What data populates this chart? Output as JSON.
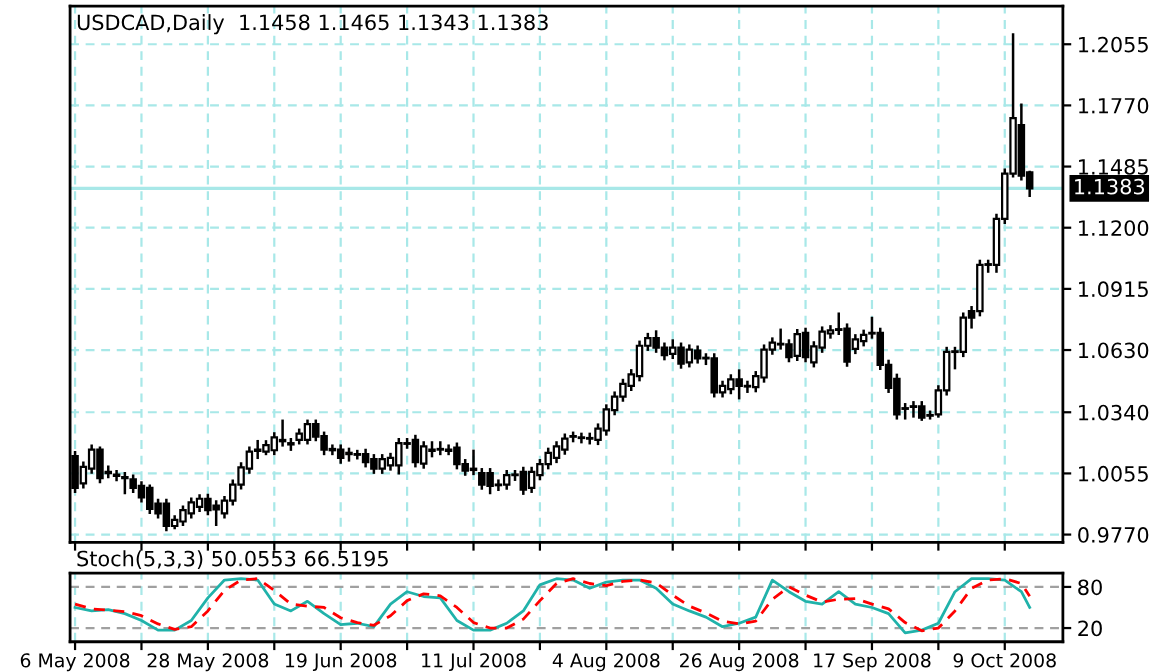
{
  "chart_data": [
    {
      "type": "candlestick",
      "title": "USDCAD,Daily  1.1458 1.1465 1.1343 1.1383",
      "ohlc": [
        [
          1.0136,
          1.016,
          0.9964,
          0.9988
        ],
        [
          1.0009,
          1.011,
          0.9985,
          1.0086
        ],
        [
          1.0077,
          1.019,
          1.0053,
          1.0166
        ],
        [
          1.0166,
          1.0181,
          1.0009,
          1.0033
        ],
        [
          1.0062,
          1.0092,
          1.0033,
          1.0056
        ],
        [
          1.005,
          1.0071,
          1.0018,
          1.0044
        ],
        [
          1.0038,
          1.0062,
          0.9958,
          1.0033
        ],
        [
          1.0027,
          1.005,
          0.9964,
          0.9988
        ],
        [
          0.9997,
          1.0018,
          0.992,
          0.9943
        ],
        [
          0.9988,
          1.0003,
          0.9866,
          0.989
        ],
        [
          0.9914,
          0.9937,
          0.9845,
          0.9869
        ],
        [
          0.9914,
          0.9937,
          0.9786,
          0.981
        ],
        [
          0.981,
          0.986,
          0.9795,
          0.9839
        ],
        [
          0.9831,
          0.9905,
          0.981,
          0.9884
        ],
        [
          0.9869,
          0.9943,
          0.9845,
          0.992
        ],
        [
          0.9899,
          0.9958,
          0.9875,
          0.9937
        ],
        [
          0.9937,
          0.996,
          0.986,
          0.9884
        ],
        [
          0.9905,
          0.993,
          0.981,
          0.9887
        ],
        [
          0.9869,
          0.995,
          0.9845,
          0.9928
        ],
        [
          0.9928,
          1.0027,
          0.9905,
          1.0003
        ],
        [
          1.0003,
          1.0107,
          0.998,
          1.0083
        ],
        [
          1.0077,
          1.0181,
          1.0053,
          1.0157
        ],
        [
          1.016,
          1.0211,
          1.0122,
          1.0166
        ],
        [
          1.0157,
          1.021,
          1.014,
          1.0187
        ],
        [
          1.0163,
          1.0247,
          1.014,
          1.0223
        ],
        [
          1.0211,
          1.0306,
          1.018,
          1.0205
        ],
        [
          1.019,
          1.022,
          1.016,
          1.0196
        ],
        [
          1.0211,
          1.0264,
          1.019,
          1.024
        ],
        [
          1.0211,
          1.0306,
          1.019,
          1.0285
        ],
        [
          1.0285,
          1.0306,
          1.0205,
          1.0226
        ],
        [
          1.0229,
          1.025,
          1.014,
          1.0166
        ],
        [
          1.0169,
          1.019,
          1.014,
          1.0163
        ],
        [
          1.0166,
          1.019,
          1.01,
          1.0127
        ],
        [
          1.0151,
          1.0175,
          1.011,
          1.0145
        ],
        [
          1.0145,
          1.0165,
          1.012,
          1.0142
        ],
        [
          1.0145,
          1.017,
          1.0083,
          1.0107
        ],
        [
          1.0122,
          1.0145,
          1.0053,
          1.0077
        ],
        [
          1.0077,
          1.0145,
          1.0053,
          1.0122
        ],
        [
          1.0092,
          1.0151,
          1.0068,
          1.0127
        ],
        [
          1.0092,
          1.022,
          1.005,
          1.0196
        ],
        [
          1.0196,
          1.022,
          1.017,
          1.0193
        ],
        [
          1.0211,
          1.0235,
          1.0083,
          1.0107
        ],
        [
          1.0101,
          1.0205,
          1.0077,
          1.0181
        ],
        [
          1.0166,
          1.0205,
          1.013,
          1.016
        ],
        [
          1.0166,
          1.0205,
          1.014,
          1.0169
        ],
        [
          1.0166,
          1.019,
          1.014,
          1.016
        ],
        [
          1.0175,
          1.0199,
          1.0074,
          1.0098
        ],
        [
          1.0098,
          1.0122,
          1.0044,
          1.0068
        ],
        [
          1.0077,
          1.0166,
          1.0047,
          1.0071
        ],
        [
          1.0056,
          1.008,
          0.9979,
          1.0003
        ],
        [
          1.0056,
          1.008,
          0.9958,
          0.9997
        ],
        [
          1.0003,
          1.0027,
          0.9973,
          1.0
        ],
        [
          1.0003,
          1.0071,
          0.9979,
          1.0047
        ],
        [
          1.0047,
          1.0071,
          1.002,
          1.005
        ],
        [
          1.0062,
          1.0086,
          0.9955,
          0.9979
        ],
        [
          0.9988,
          1.0086,
          0.9964,
          1.0062
        ],
        [
          1.0047,
          1.0122,
          1.0023,
          1.0098
        ],
        [
          1.0098,
          1.0175,
          1.0074,
          1.0151
        ],
        [
          1.0127,
          1.0205,
          1.0103,
          1.0181
        ],
        [
          1.0166,
          1.0241,
          1.0142,
          1.0217
        ],
        [
          1.0226,
          1.025,
          1.02,
          1.0229
        ],
        [
          1.022,
          1.0245,
          1.0195,
          1.0223
        ],
        [
          1.0217,
          1.0245,
          1.019,
          1.022
        ],
        [
          1.0211,
          1.0288,
          1.0187,
          1.0264
        ],
        [
          1.0255,
          1.0377,
          1.0231,
          1.0353
        ],
        [
          1.035,
          1.0437,
          1.0326,
          1.0413
        ],
        [
          1.0413,
          1.0496,
          1.0389,
          1.0472
        ],
        [
          1.0463,
          1.0541,
          1.0439,
          1.0517
        ],
        [
          1.0508,
          1.0674,
          1.0484,
          1.065
        ],
        [
          1.065,
          1.071,
          1.0626,
          1.0686
        ],
        [
          1.0686,
          1.0722,
          1.0617,
          1.0641
        ],
        [
          1.0641,
          1.0665,
          1.0582,
          1.0606
        ],
        [
          1.0612,
          1.068,
          1.0588,
          1.0641
        ],
        [
          1.0641,
          1.0665,
          1.0543,
          1.0567
        ],
        [
          1.0573,
          1.0656,
          1.0549,
          1.0632
        ],
        [
          1.0627,
          1.0651,
          1.0567,
          1.0591
        ],
        [
          1.0594,
          1.0615,
          1.056,
          1.0591
        ],
        [
          1.0591,
          1.0615,
          1.0409,
          1.0433
        ],
        [
          1.0433,
          1.0487,
          1.0409,
          1.0463
        ],
        [
          1.0448,
          1.0517,
          1.0424,
          1.0493
        ],
        [
          1.0493,
          1.054,
          1.04,
          1.0463
        ],
        [
          1.0463,
          1.0487,
          1.043,
          1.046
        ],
        [
          1.0457,
          1.0532,
          1.0433,
          1.0508
        ],
        [
          1.0502,
          1.0656,
          1.0478,
          1.0632
        ],
        [
          1.0632,
          1.0689,
          1.0608,
          1.0665
        ],
        [
          1.0656,
          1.073,
          1.0632,
          1.0659
        ],
        [
          1.0656,
          1.068,
          1.0573,
          1.0597
        ],
        [
          1.0603,
          1.0728,
          1.0579,
          1.0704
        ],
        [
          1.071,
          1.0734,
          1.0573,
          1.0597
        ],
        [
          1.0573,
          1.0671,
          1.0549,
          1.0647
        ],
        [
          1.0641,
          1.074,
          1.0617,
          1.0716
        ],
        [
          1.0707,
          1.0746,
          1.0683,
          1.0722
        ],
        [
          1.0724,
          1.0805,
          1.07,
          1.0727
        ],
        [
          1.073,
          1.0754,
          1.0552,
          1.0576
        ],
        [
          1.0635,
          1.0704,
          1.0611,
          1.068
        ],
        [
          1.0671,
          1.0725,
          1.0647,
          1.0701
        ],
        [
          1.0707,
          1.0785,
          1.0683,
          1.071
        ],
        [
          1.071,
          1.0734,
          1.0537,
          1.0561
        ],
        [
          1.0561,
          1.0585,
          1.043,
          1.0454
        ],
        [
          1.0496,
          1.052,
          1.0306,
          1.033
        ],
        [
          1.0359,
          1.0383,
          1.0306,
          1.0356
        ],
        [
          1.0368,
          1.0392,
          1.0315,
          1.0365
        ],
        [
          1.0368,
          1.0392,
          1.03,
          1.0315
        ],
        [
          1.0324,
          1.0348,
          1.0306,
          1.0327
        ],
        [
          1.033,
          1.0466,
          1.0315,
          1.0442
        ],
        [
          1.0442,
          1.0645,
          1.0418,
          1.0621
        ],
        [
          1.0621,
          1.0645,
          1.054,
          1.0624
        ],
        [
          1.0621,
          1.0805,
          1.0597,
          1.0781
        ],
        [
          1.0811,
          1.0835,
          1.073,
          1.0781
        ],
        [
          1.0811,
          1.1051,
          1.0787,
          1.1027
        ],
        [
          1.1027,
          1.1051,
          1.099,
          1.103
        ],
        [
          1.1027,
          1.1265,
          1.099,
          1.1241
        ],
        [
          1.1241,
          1.1476,
          1.1217,
          1.1452
        ],
        [
          1.1452,
          1.2106,
          1.1434,
          1.1711
        ],
        [
          1.1678,
          1.1779,
          1.142,
          1.1443
        ],
        [
          1.1458,
          1.1465,
          1.1343,
          1.1383
        ]
      ],
      "ylim": [
        0.9734,
        1.2233
      ],
      "yticks": [
        {
          "value": 0.977,
          "label": "0.9770"
        },
        {
          "value": 1.0055,
          "label": "1.0055"
        },
        {
          "value": 1.034,
          "label": "1.0340"
        },
        {
          "value": 1.063,
          "label": "1.0630"
        },
        {
          "value": 1.0915,
          "label": "1.0915"
        },
        {
          "value": 1.12,
          "label": "1.1200"
        },
        {
          "value": 1.1485,
          "label": "1.1485"
        },
        {
          "value": 1.177,
          "label": "1.1770"
        },
        {
          "value": 1.2055,
          "label": "1.2055"
        }
      ],
      "ref_lines": [
        {
          "axis": "y",
          "value": 1.1383,
          "label": "1.1383",
          "color": "#a8e8e8"
        }
      ],
      "grid": true,
      "tick_labels": "y"
    },
    {
      "type": "line",
      "title": "Stoch(5,3,3) 50.0553 66.5195",
      "categories": [
        "6 May 2008",
        null,
        null,
        null,
        null,
        null,
        null,
        null,
        null,
        null,
        null,
        null,
        null,
        null,
        null,
        null,
        "28 May 2008",
        null,
        null,
        null,
        null,
        null,
        null,
        null,
        null,
        null,
        null,
        null,
        null,
        null,
        null,
        null,
        "19 Jun 2008",
        null,
        null,
        null,
        null,
        null,
        null,
        null,
        null,
        null,
        null,
        null,
        null,
        null,
        null,
        null,
        "11 Jul 2008",
        null,
        null,
        null,
        null,
        null,
        null,
        null,
        null,
        null,
        null,
        null,
        null,
        null,
        null,
        null,
        "4 Aug 2008",
        null,
        null,
        null,
        null,
        null,
        null,
        null,
        null,
        null,
        null,
        null,
        null,
        null,
        null,
        null,
        "26 Aug 2008",
        null,
        null,
        null,
        null,
        null,
        null,
        null,
        null,
        null,
        null,
        null,
        null,
        null,
        null,
        null,
        "17 Sep 2008",
        null,
        null,
        null,
        null,
        null,
        null,
        null,
        null,
        null,
        null,
        null,
        null,
        null,
        null,
        null,
        "9 Oct 2008",
        null,
        null,
        null
      ],
      "series": [
        {
          "color": "#20b2aa",
          "line_style": "solid",
          "values": [
            50,
            null,
            45,
            null,
            47,
            null,
            41,
            null,
            31,
            null,
            17,
            null,
            17,
            null,
            31,
            null,
            64,
            null,
            90,
            null,
            92,
            null,
            90,
            null,
            55,
            null,
            45,
            null,
            59,
            null,
            41,
            null,
            25,
            null,
            27,
            null,
            22,
            null,
            55,
            null,
            73,
            null,
            66,
            null,
            64,
            null,
            31,
            null,
            17,
            null,
            17,
            null,
            27,
            null,
            45,
            null,
            83,
            null,
            92,
            null,
            90,
            null,
            78,
            null,
            87,
            null,
            90,
            null,
            90,
            null,
            78,
            null,
            55,
            null,
            45,
            null,
            36,
            null,
            22,
            null,
            27,
            null,
            36,
            null,
            90,
            null,
            73,
            null,
            59,
            null,
            55,
            null,
            73,
            null,
            55,
            null,
            50,
            null,
            41,
            null,
            13,
            null,
            17,
            null,
            27,
            null,
            73,
            null,
            92,
            null,
            92,
            null,
            90,
            null,
            73,
            50.0553
          ]
        },
        {
          "color": "#ff0000",
          "line_style": "dashed",
          "values": [
            55,
            null,
            48,
            null,
            46,
            null,
            44,
            null,
            38,
            null,
            26,
            null,
            18,
            null,
            22,
            null,
            45,
            null,
            75,
            null,
            90,
            null,
            92,
            null,
            75,
            null,
            55,
            null,
            52,
            null,
            50,
            null,
            35,
            null,
            28,
            null,
            24,
            null,
            38,
            null,
            60,
            null,
            70,
            null,
            67,
            null,
            50,
            null,
            28,
            null,
            20,
            null,
            20,
            null,
            33,
            null,
            60,
            null,
            85,
            null,
            92,
            null,
            85,
            null,
            82,
            null,
            88,
            null,
            90,
            null,
            86,
            null,
            68,
            null,
            52,
            null,
            42,
            null,
            30,
            null,
            26,
            null,
            30,
            null,
            62,
            null,
            80,
            null,
            68,
            null,
            58,
            null,
            62,
            null,
            63,
            null,
            55,
            null,
            48,
            null,
            28,
            null,
            16,
            null,
            20,
            null,
            45,
            null,
            78,
            null,
            90,
            null,
            92,
            null,
            85,
            66.5195
          ]
        }
      ],
      "ylim": [
        0,
        100
      ],
      "yticks": [
        20,
        80
      ],
      "grid": true
    }
  ]
}
